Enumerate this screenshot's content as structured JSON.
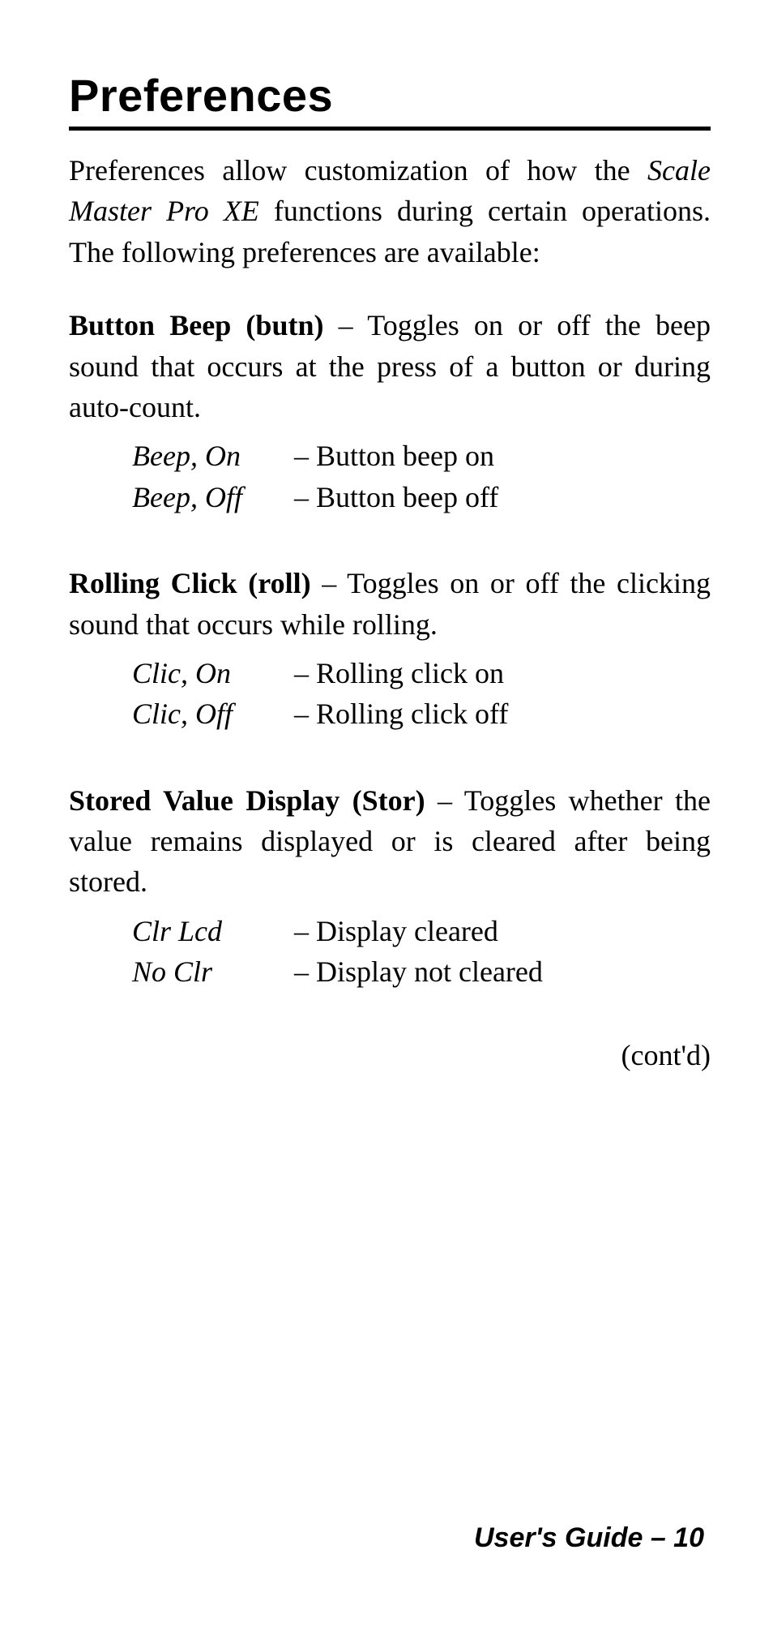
{
  "heading": "Preferences",
  "intro": {
    "pre": "Preferences allow customization of how the ",
    "product": "Scale Master Pro XE",
    "post": " functions during certain operations. The following preferences are available:"
  },
  "sections": [
    {
      "lead": "Button Beep (butn)",
      "rest": " – Toggles on or off the beep sound that occurs at the press of a button or during auto-count.",
      "options": [
        {
          "label": "Beep, On",
          "desc": "– Button beep on"
        },
        {
          "label": "Beep, Off",
          "desc": "– Button beep off"
        }
      ]
    },
    {
      "lead": "Rolling Click (roll)",
      "rest": " – Toggles on or off the clicking sound that occurs while rolling.",
      "options": [
        {
          "label": "Clic, On",
          "desc": "– Rolling click on"
        },
        {
          "label": "Clic, Off",
          "desc": "– Rolling click off"
        }
      ]
    },
    {
      "lead": "Stored Value Display (Stor)",
      "rest": " – Toggles whether the value remains displayed or is cleared after being stored.",
      "options": [
        {
          "label": "Clr Lcd",
          "desc": "– Display cleared"
        },
        {
          "label": "No Clr",
          "desc": "– Display not cleared"
        }
      ]
    }
  ],
  "contd": "(cont'd)",
  "footer": "User's Guide – 10"
}
